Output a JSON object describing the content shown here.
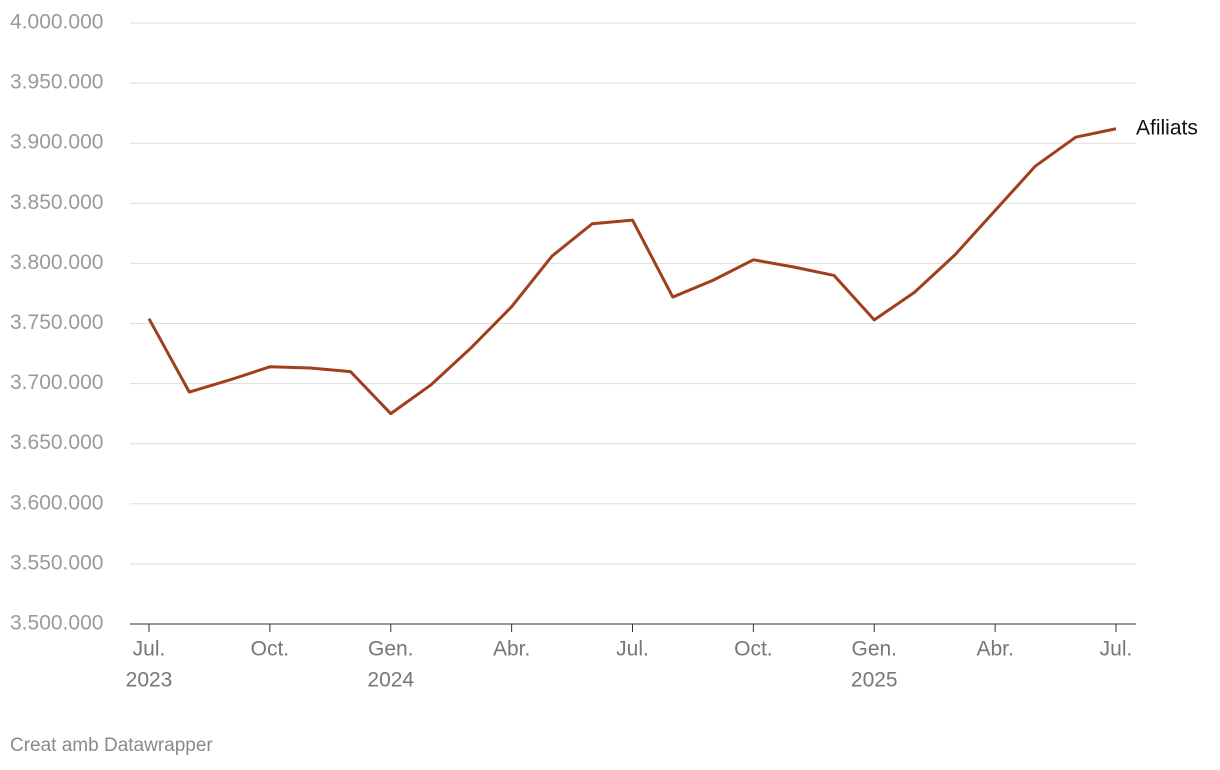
{
  "chart_data": {
    "type": "line",
    "categories": [
      "Jul.",
      null,
      null,
      "Oct.",
      null,
      null,
      "Gen.",
      null,
      null,
      "Abr.",
      null,
      null,
      "Jul.",
      null,
      null,
      "Oct.",
      null,
      null,
      "Gen.",
      null,
      null,
      "Abr.",
      null,
      null,
      "Jul."
    ],
    "category_years": [
      "2023",
      null,
      null,
      null,
      null,
      null,
      "2024",
      null,
      null,
      null,
      null,
      null,
      null,
      null,
      null,
      null,
      null,
      null,
      "2025",
      null,
      null,
      null,
      null,
      null,
      null
    ],
    "series": [
      {
        "name": "Afiliats",
        "color": "#a03f1c",
        "values": [
          3754000,
          3693000,
          3703000,
          3714000,
          3713000,
          3710000,
          3675000,
          3699000,
          3730000,
          3764000,
          3806000,
          3833000,
          3836000,
          3772000,
          3786000,
          3803000,
          3797000,
          3790000,
          3753000,
          3776000,
          3807000,
          3844000,
          3881000,
          3905000,
          3912000
        ]
      }
    ],
    "ylim": [
      3500000,
      4000000
    ],
    "yticks": [
      {
        "value": 3500000,
        "label": "3.500.000"
      },
      {
        "value": 3550000,
        "label": "3.550.000"
      },
      {
        "value": 3600000,
        "label": "3.600.000"
      },
      {
        "value": 3650000,
        "label": "3.650.000"
      },
      {
        "value": 3700000,
        "label": "3.700.000"
      },
      {
        "value": 3750000,
        "label": "3.750.000"
      },
      {
        "value": 3800000,
        "label": "3.800.000"
      },
      {
        "value": 3850000,
        "label": "3.850.000"
      },
      {
        "value": 3900000,
        "label": "3.900.000"
      },
      {
        "value": 3950000,
        "label": "3.950.000"
      },
      {
        "value": 4000000,
        "label": "4.000.000"
      }
    ],
    "grid": true,
    "footer": "Creat amb Datawrapper"
  }
}
